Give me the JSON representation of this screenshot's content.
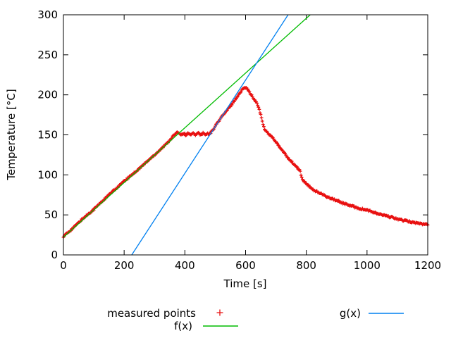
{
  "chart_data": {
    "type": "scatter",
    "title": "",
    "xlabel": "Time [s]",
    "ylabel": "Temperature [°C]",
    "xlim": [
      0,
      1200
    ],
    "ylim": [
      0,
      300
    ],
    "xticks": [
      "0",
      "200",
      "400",
      "600",
      "800",
      "1000",
      "1200"
    ],
    "yticks": [
      "0",
      "50",
      "100",
      "150",
      "200",
      "250",
      "300"
    ],
    "grid": false,
    "legend_position": "below-plot, two columns",
    "series": [
      {
        "name": "measured points",
        "type": "scatter",
        "marker": "plus",
        "color": "#e81010",
        "noise_amp": 1.0,
        "sample_step_s": 2.5,
        "anchors": [
          [
            0,
            23
          ],
          [
            30,
            33
          ],
          [
            60,
            44
          ],
          [
            100,
            57
          ],
          [
            150,
            75
          ],
          [
            200,
            92
          ],
          [
            250,
            108
          ],
          [
            300,
            125
          ],
          [
            340,
            139
          ],
          [
            365,
            150
          ],
          [
            372,
            152
          ],
          [
            380,
            153
          ],
          [
            388,
            150
          ],
          [
            396,
            152.5
          ],
          [
            404,
            149.5
          ],
          [
            412,
            152.5
          ],
          [
            420,
            149.5
          ],
          [
            428,
            152
          ],
          [
            436,
            150
          ],
          [
            444,
            152.5
          ],
          [
            452,
            150
          ],
          [
            460,
            152
          ],
          [
            468,
            150
          ],
          [
            476,
            151.5
          ],
          [
            482,
            151
          ],
          [
            490,
            155
          ],
          [
            500,
            161
          ],
          [
            520,
            172
          ],
          [
            540,
            181
          ],
          [
            560,
            191
          ],
          [
            575,
            199
          ],
          [
            585,
            204
          ],
          [
            592,
            208
          ],
          [
            597,
            210
          ],
          [
            603,
            209
          ],
          [
            610,
            205
          ],
          [
            620,
            199
          ],
          [
            630,
            193
          ],
          [
            638,
            189
          ],
          [
            645,
            182
          ],
          [
            652,
            172
          ],
          [
            658,
            162
          ],
          [
            663,
            157
          ],
          [
            672,
            153
          ],
          [
            685,
            148
          ],
          [
            700,
            141
          ],
          [
            715,
            133
          ],
          [
            730,
            126
          ],
          [
            745,
            119
          ],
          [
            760,
            113
          ],
          [
            772,
            108
          ],
          [
            780,
            105
          ],
          [
            783,
            99
          ],
          [
            787,
            94
          ],
          [
            795,
            91
          ],
          [
            805,
            87
          ],
          [
            820,
            82
          ],
          [
            840,
            78
          ],
          [
            860,
            74
          ],
          [
            880,
            71
          ],
          [
            900,
            68
          ],
          [
            925,
            64
          ],
          [
            950,
            61
          ],
          [
            975,
            58
          ],
          [
            1000,
            56
          ],
          [
            1030,
            52
          ],
          [
            1060,
            49
          ],
          [
            1090,
            46
          ],
          [
            1120,
            43
          ],
          [
            1150,
            41
          ],
          [
            1175,
            39
          ],
          [
            1200,
            38
          ]
        ]
      },
      {
        "name": "f(x)",
        "type": "line",
        "color": "#00bb00",
        "x0": 0,
        "y0": 22,
        "slope": 0.342
      },
      {
        "name": "g(x)",
        "type": "line",
        "color": "#0080f0",
        "x0": 225,
        "y0": 0,
        "slope": 0.5825
      }
    ]
  },
  "colors": {
    "measured": "#e81010",
    "f_line": "#00bb00",
    "g_line": "#0080f0",
    "axis": "#000000"
  }
}
